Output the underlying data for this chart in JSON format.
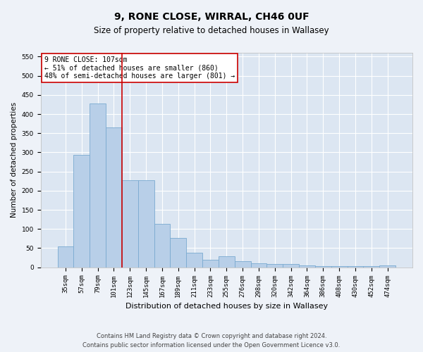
{
  "title": "9, RONE CLOSE, WIRRAL, CH46 0UF",
  "subtitle": "Size of property relative to detached houses in Wallasey",
  "xlabel": "Distribution of detached houses by size in Wallasey",
  "ylabel": "Number of detached properties",
  "categories": [
    "35sqm",
    "57sqm",
    "79sqm",
    "101sqm",
    "123sqm",
    "145sqm",
    "167sqm",
    "189sqm",
    "211sqm",
    "233sqm",
    "255sqm",
    "276sqm",
    "298sqm",
    "320sqm",
    "342sqm",
    "364sqm",
    "386sqm",
    "408sqm",
    "430sqm",
    "452sqm",
    "474sqm"
  ],
  "values": [
    55,
    293,
    428,
    365,
    227,
    227,
    113,
    76,
    38,
    20,
    28,
    16,
    10,
    9,
    9,
    5,
    4,
    4,
    4,
    4,
    5
  ],
  "bar_color": "#b8cfe8",
  "bar_edge_color": "#7aaad0",
  "vline_color": "#cc0000",
  "vline_pos": 3.5,
  "annotation_text": "9 RONE CLOSE: 107sqm\n← 51% of detached houses are smaller (860)\n48% of semi-detached houses are larger (801) →",
  "annotation_box_color": "#ffffff",
  "annotation_box_edge": "#cc0000",
  "ylim": [
    0,
    560
  ],
  "yticks": [
    0,
    50,
    100,
    150,
    200,
    250,
    300,
    350,
    400,
    450,
    500,
    550
  ],
  "fig_bg_color": "#eef2f8",
  "plot_bg_color": "#dce6f2",
  "grid_color": "#ffffff",
  "footer": "Contains HM Land Registry data © Crown copyright and database right 2024.\nContains public sector information licensed under the Open Government Licence v3.0.",
  "title_fontsize": 10,
  "subtitle_fontsize": 8.5,
  "xlabel_fontsize": 8,
  "ylabel_fontsize": 7.5,
  "tick_fontsize": 6.5,
  "annotation_fontsize": 7,
  "footer_fontsize": 6
}
